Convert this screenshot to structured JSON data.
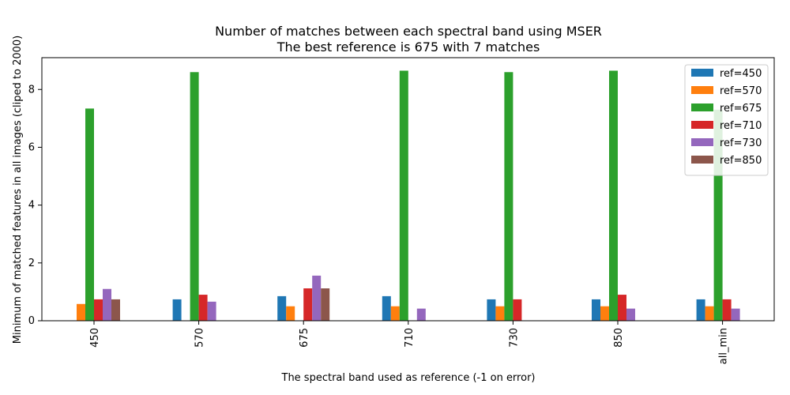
{
  "chart_data": {
    "type": "bar",
    "title_line1": "Number of matches between each spectral band using MSER",
    "title_line2": "The best reference is 675 with 7 matches",
    "xlabel": "The spectral band used as reference (-1 on error)",
    "ylabel": "Minimum of matched features in all images (cliped to 2000)",
    "categories": [
      "450",
      "570",
      "675",
      "710",
      "730",
      "850",
      "all_min"
    ],
    "ylim": [
      0,
      9.1
    ],
    "yticks": [
      0,
      2,
      4,
      6,
      8
    ],
    "legend_position": "top-right",
    "series": [
      {
        "name": "ref=450",
        "color": "#1f77b4",
        "values": [
          0,
          0.74,
          0.85,
          0.85,
          0.74,
          0.74,
          0.74
        ]
      },
      {
        "name": "ref=570",
        "color": "#ff7f0e",
        "values": [
          0.58,
          0,
          0.5,
          0.5,
          0.5,
          0.5,
          0.5
        ]
      },
      {
        "name": "ref=675",
        "color": "#2ca02c",
        "values": [
          7.34,
          8.6,
          0,
          8.65,
          8.6,
          8.65,
          7.3
        ]
      },
      {
        "name": "ref=710",
        "color": "#d62728",
        "values": [
          0.74,
          0.9,
          1.12,
          0,
          0.74,
          0.9,
          0.74
        ]
      },
      {
        "name": "ref=730",
        "color": "#9467bd",
        "values": [
          1.1,
          0.66,
          1.56,
          0.42,
          0,
          0.42,
          0.42
        ]
      },
      {
        "name": "ref=850",
        "color": "#8c564b",
        "values": [
          0.74,
          0,
          1.12,
          0,
          0,
          0,
          0
        ]
      }
    ]
  }
}
